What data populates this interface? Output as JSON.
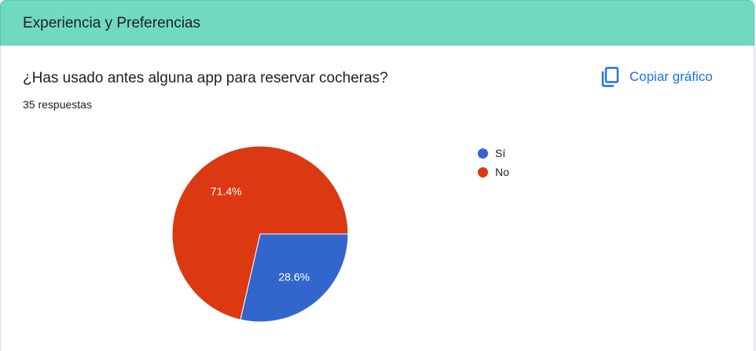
{
  "section": {
    "title": "Experiencia y Preferencias"
  },
  "question": {
    "title": "¿Has usado antes alguna app para reservar cocheras?",
    "responses": "35 respuestas"
  },
  "actions": {
    "copy_chart_label": "Copiar gráfico",
    "copy_icon": "copy-icon"
  },
  "colors": {
    "header_bg": "#6fdac1",
    "accent": "#1a73e8"
  },
  "chart_data": {
    "type": "pie",
    "categories": [
      "Sí",
      "No"
    ],
    "values": [
      28.6,
      71.4
    ],
    "labels": [
      "28.6%",
      "71.4%"
    ],
    "colors": [
      "#3366cc",
      "#dc3912"
    ],
    "legend_position": "right"
  }
}
